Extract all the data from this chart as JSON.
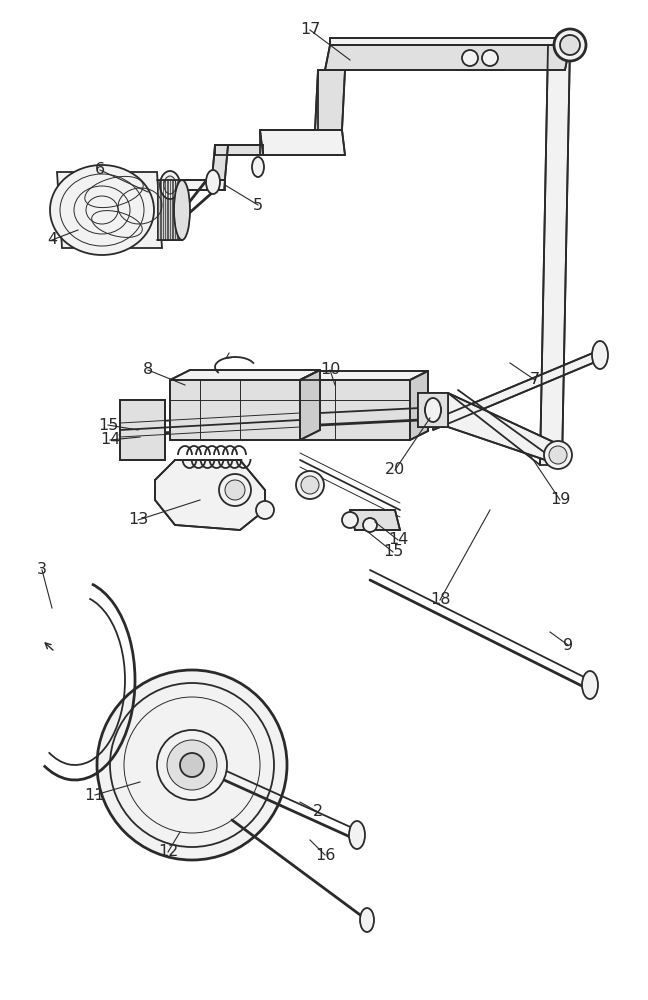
{
  "bg_color": "#ffffff",
  "line_color": "#2a2a2a",
  "lw_main": 1.3,
  "lw_thick": 2.0,
  "lw_thin": 0.7,
  "label_fontsize": 11.5,
  "shadow": "#c8c8c8",
  "face_light": "#f2f2f2",
  "face_mid": "#e0e0e0",
  "face_dark": "#cccccc"
}
